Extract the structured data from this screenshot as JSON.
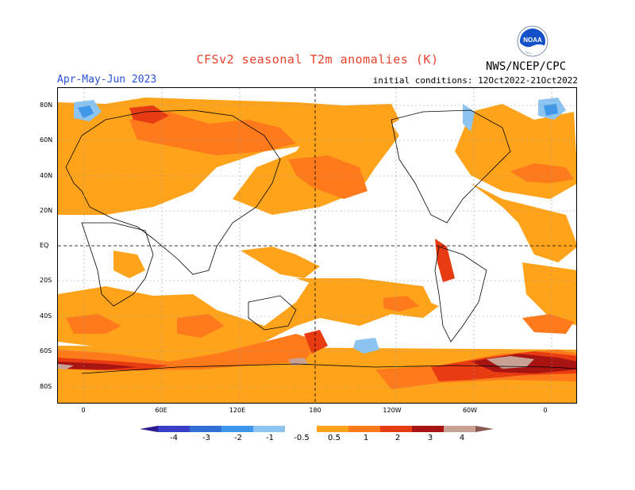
{
  "header": {
    "title": "CFSv2 seasonal T2m anomalies (K)",
    "season": "Apr-May-Jun 2023",
    "initial_conditions": "initial conditions: 12Oct2022-21Oct2022",
    "agency": "NWS/NCEP/CPC",
    "logo_text": "NOAA"
  },
  "axes": {
    "lat_labels": [
      "80N",
      "60N",
      "40N",
      "20N",
      "EQ",
      "20S",
      "40S",
      "60S",
      "80S"
    ],
    "lon_labels": [
      "0",
      "60E",
      "120E",
      "180",
      "120W",
      "60W",
      "0"
    ]
  },
  "colorbar": {
    "labels": [
      "-4",
      "-3",
      "-2",
      "-1",
      "-0.5",
      "0.5",
      "1",
      "2",
      "3",
      "4"
    ],
    "colors": [
      "#2c1b8f",
      "#3a3fc7",
      "#2f6fd6",
      "#3e97e8",
      "#8cc4f2",
      "#ffffff",
      "#ffa31a",
      "#ff7a1a",
      "#e83b12",
      "#a81412",
      "#c9a094",
      "#8a5a52"
    ]
  },
  "colors": {
    "orange_05_1": "#ffa31a",
    "orange_1_2": "#ff7a1a",
    "red_2_3": "#e83b12",
    "darkred_3_4": "#a81412",
    "tan_4": "#c9a094",
    "blue_light": "#8cc4f2",
    "blue_mid": "#3e97e8"
  }
}
